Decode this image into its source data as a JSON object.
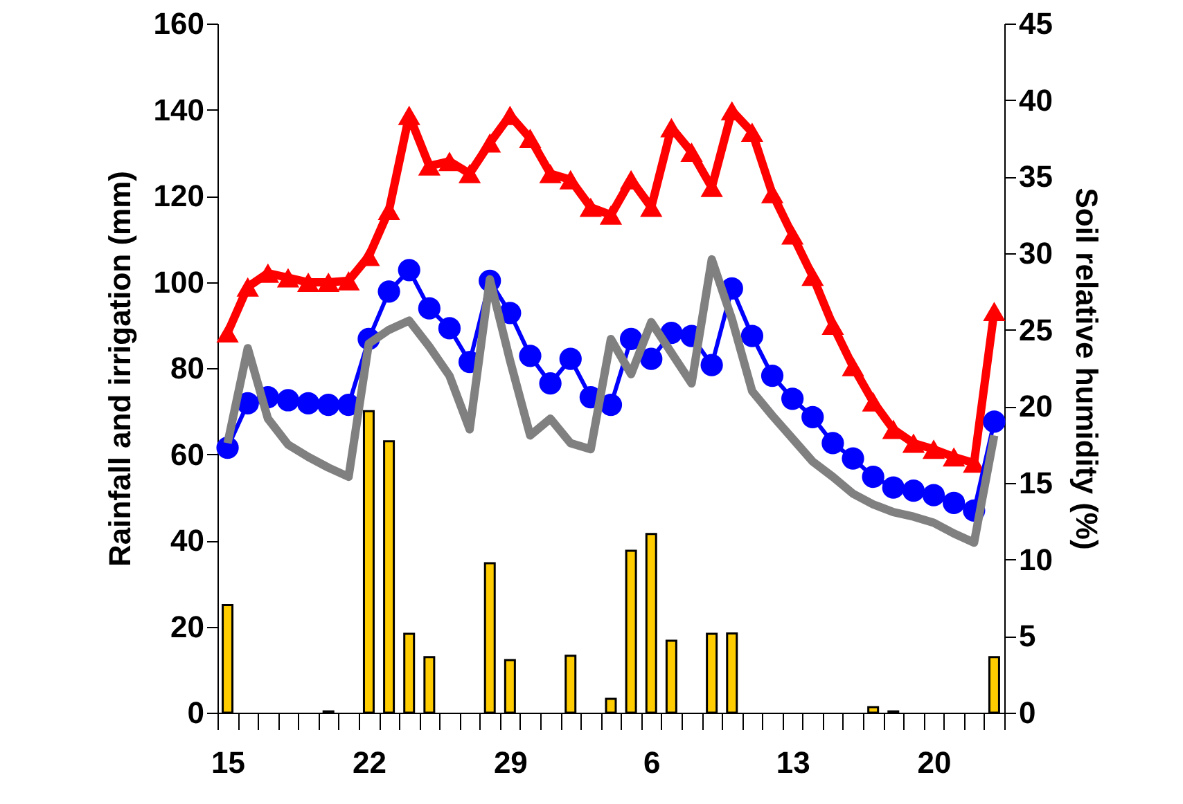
{
  "chart_data": {
    "type": "bar",
    "xlabel": null,
    "ylabel": "Rainfall and irrigation (mm)",
    "y2label": "Soil relative humidity (%)",
    "categories": [
      "15",
      null,
      null,
      null,
      null,
      null,
      null,
      "22",
      null,
      null,
      null,
      null,
      null,
      null,
      "29",
      null,
      null,
      null,
      null,
      null,
      null,
      "6",
      null,
      null,
      null,
      null,
      null,
      null,
      "13",
      null,
      null,
      null,
      null,
      null,
      null,
      "20",
      null,
      null,
      null
    ],
    "ylim": [
      0,
      160
    ],
    "yticks": [
      0,
      20,
      40,
      60,
      80,
      100,
      120,
      140,
      160
    ],
    "y2lim": [
      0,
      45
    ],
    "y2ticks": [
      0,
      5,
      10,
      15,
      20,
      25,
      30,
      35,
      40,
      45
    ],
    "grid": false,
    "series": [
      {
        "color": "#ffcc00",
        "values": [
          25,
          null,
          null,
          null,
          null,
          0.3,
          null,
          70,
          63,
          18.3,
          12.9,
          null,
          null,
          34.7,
          12.2,
          null,
          null,
          13.2,
          null,
          3.2,
          37.6,
          41.5,
          16.7,
          null,
          18.3,
          18.4,
          null,
          null,
          null,
          null,
          null,
          null,
          1.3,
          0.3,
          null,
          null,
          null,
          null,
          12.9
        ]
      },
      {
        "type": "line",
        "axis": "y2",
        "color": "#ff0000",
        "marker": "triangle",
        "line_style": "solid",
        "values": [
          24.8,
          27.8,
          28.7,
          28.4,
          28.1,
          28.1,
          28.2,
          29.8,
          32.8,
          39.0,
          35.7,
          36.0,
          35.2,
          37.2,
          39.0,
          37.5,
          35.2,
          34.8,
          33.0,
          32.5,
          34.8,
          33.0,
          38.2,
          36.6,
          34.3,
          39.3,
          37.9,
          33.9,
          31.2,
          28.5,
          25.3,
          22.6,
          20.3,
          18.5,
          17.6,
          17.2,
          16.7,
          16.3,
          26.2
        ]
      },
      {
        "type": "line",
        "axis": "y2",
        "color": "#0000ff",
        "marker": "circle",
        "line_style": "solid",
        "values": [
          17.3,
          20.2,
          20.6,
          20.4,
          20.2,
          20.1,
          20.1,
          24.4,
          27.5,
          28.9,
          26.4,
          25.1,
          22.9,
          28.2,
          26.1,
          23.3,
          21.5,
          23.1,
          20.6,
          20.1,
          24.4,
          23.1,
          24.8,
          24.6,
          22.7,
          27.7,
          24.6,
          22.0,
          20.5,
          19.3,
          17.6,
          16.6,
          15.4,
          14.7,
          14.5,
          14.2,
          13.7,
          13.2,
          19.0
        ]
      },
      {
        "type": "line",
        "axis": "y2",
        "color": "#808080",
        "marker": "none",
        "line_style": "solid",
        "values": [
          17.6,
          23.8,
          19.2,
          17.5,
          16.7,
          16.0,
          15.4,
          24.1,
          25.0,
          25.6,
          23.9,
          22.0,
          18.5,
          28.3,
          23.0,
          18.1,
          19.2,
          17.6,
          17.2,
          24.4,
          22.1,
          25.5,
          23.5,
          21.5,
          29.6,
          25.7,
          21.0,
          19.4,
          17.9,
          16.4,
          15.4,
          14.3,
          13.6,
          13.1,
          12.8,
          12.4,
          11.7,
          11.1,
          18.1
        ]
      }
    ]
  }
}
